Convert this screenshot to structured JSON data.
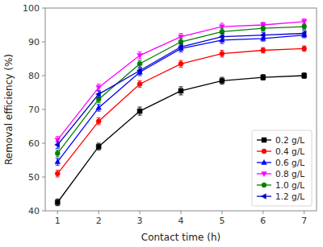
{
  "chart_data": {
    "type": "line",
    "x": [
      1,
      2,
      3,
      4,
      5,
      6,
      7
    ],
    "series": [
      {
        "name": "0.2 g/L",
        "color": "#000000",
        "marker": "square",
        "values": [
          42.5,
          59.0,
          69.5,
          75.5,
          78.5,
          79.5,
          80.0
        ],
        "errors": [
          1.0,
          1.0,
          1.2,
          1.2,
          1.0,
          0.8,
          0.8
        ]
      },
      {
        "name": "0.4 g/L",
        "color": "#ff0000",
        "marker": "circle",
        "values": [
          51.0,
          66.5,
          77.5,
          83.5,
          86.5,
          87.5,
          88.0
        ],
        "errors": [
          1.0,
          1.0,
          1.0,
          1.0,
          1.0,
          0.8,
          0.8
        ]
      },
      {
        "name": "0.6 g/L",
        "color": "#0000ff",
        "marker": "triangle-up",
        "values": [
          54.5,
          70.5,
          81.0,
          88.0,
          90.5,
          91.0,
          92.0
        ],
        "errors": [
          1.0,
          1.0,
          1.0,
          1.0,
          1.0,
          0.8,
          0.8
        ]
      },
      {
        "name": "0.8 g/L",
        "color": "#ff00ff",
        "marker": "triangle-down",
        "values": [
          61.0,
          76.5,
          86.0,
          91.5,
          94.5,
          95.0,
          96.0
        ],
        "errors": [
          1.0,
          1.0,
          1.0,
          1.0,
          1.0,
          0.8,
          0.8
        ]
      },
      {
        "name": "1.0 g/L",
        "color": "#008000",
        "marker": "circle",
        "values": [
          57.0,
          73.0,
          83.5,
          90.0,
          93.0,
          94.0,
          94.5
        ],
        "errors": [
          1.0,
          1.0,
          1.0,
          1.0,
          1.0,
          0.8,
          0.8
        ]
      },
      {
        "name": "1.2 g/L",
        "color": "#0000cd",
        "marker": "triangle-left",
        "values": [
          59.5,
          74.5,
          81.5,
          88.5,
          91.5,
          92.0,
          92.5
        ],
        "errors": [
          1.0,
          1.0,
          1.0,
          1.0,
          1.0,
          0.8,
          0.8
        ]
      }
    ],
    "xlabel": "Contact time (h)",
    "ylabel": "Removal efficiency (%)",
    "xlim": [
      0.7,
      7.3
    ],
    "ylim": [
      40,
      100
    ],
    "xticks": [
      1,
      2,
      3,
      4,
      5,
      6,
      7
    ],
    "yticks": [
      40,
      50,
      60,
      70,
      80,
      90,
      100
    ],
    "grid": false,
    "legend": "lower right"
  }
}
